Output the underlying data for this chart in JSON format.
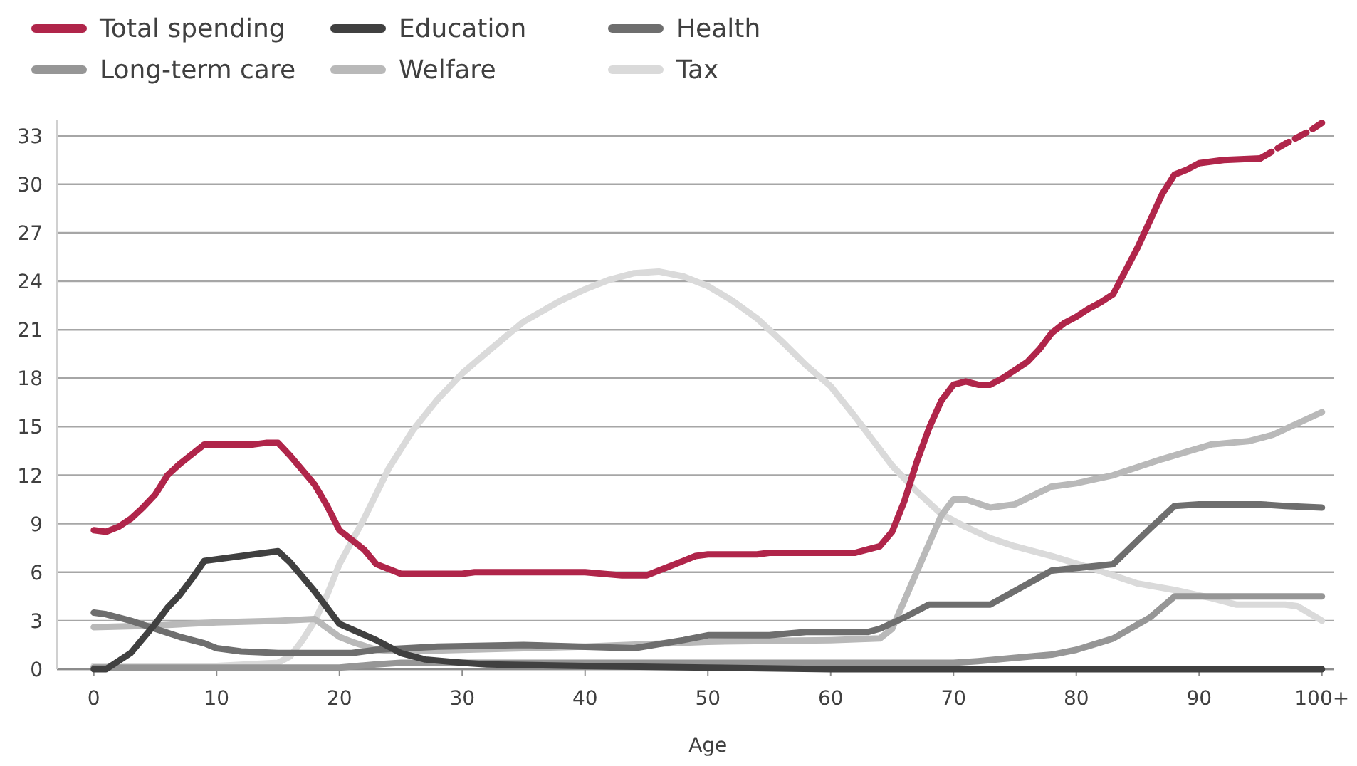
{
  "chart_data": {
    "type": "line",
    "xlabel": "Age",
    "xlim": [
      -3,
      101
    ],
    "ylim": [
      0,
      34
    ],
    "xticks": [
      0,
      10,
      20,
      30,
      40,
      50,
      60,
      70,
      80,
      90,
      {
        "value": 100,
        "label": "100+"
      }
    ],
    "yticks": [
      0,
      3,
      6,
      9,
      12,
      15,
      18,
      21,
      24,
      27,
      30,
      33
    ],
    "grid": "y",
    "legend": "top left",
    "line_style": "solid",
    "series": [
      {
        "name": "Tax",
        "color": "#dadada",
        "x": [
          0,
          5,
          10,
          15,
          16,
          17,
          18,
          19,
          20,
          22,
          24,
          26,
          28,
          30,
          32,
          35,
          38,
          40,
          42,
          44,
          46,
          48,
          50,
          52,
          54,
          56,
          58,
          60,
          62,
          64,
          65,
          67,
          69,
          71,
          73,
          75,
          78,
          81,
          83,
          85,
          88,
          91,
          93,
          97,
          98,
          100
        ],
        "values": [
          0.2,
          0.2,
          0.2,
          0.4,
          0.8,
          1.8,
          3.0,
          4.6,
          6.5,
          9.3,
          12.4,
          14.8,
          16.7,
          18.3,
          19.6,
          21.5,
          22.8,
          23.5,
          24.1,
          24.5,
          24.6,
          24.3,
          23.7,
          22.8,
          21.7,
          20.3,
          18.8,
          17.5,
          15.6,
          13.6,
          12.6,
          11.0,
          9.6,
          8.8,
          8.1,
          7.6,
          7.0,
          6.3,
          5.8,
          5.3,
          4.9,
          4.4,
          4.0,
          4.0,
          3.9,
          3.0
        ]
      },
      {
        "name": "Welfare",
        "color": "#b9b9b9",
        "x": [
          0,
          5,
          10,
          15,
          18,
          20,
          21,
          23,
          25,
          30,
          40,
          50,
          60,
          64,
          65,
          67,
          69,
          70,
          71,
          73,
          75,
          78,
          80,
          83,
          87,
          91,
          94,
          96,
          100
        ],
        "values": [
          2.6,
          2.7,
          2.9,
          3.0,
          3.1,
          2.0,
          1.7,
          1.2,
          1.1,
          1.2,
          1.4,
          1.7,
          1.8,
          1.9,
          2.5,
          6.0,
          9.5,
          10.5,
          10.5,
          10.0,
          10.2,
          11.3,
          11.5,
          12.0,
          13.0,
          13.9,
          14.1,
          14.5,
          15.9
        ]
      },
      {
        "name": "Long-term care",
        "color": "#969696",
        "x": [
          0,
          10,
          20,
          23,
          25,
          30,
          40,
          50,
          60,
          70,
          72,
          75,
          78,
          80,
          83,
          86,
          88,
          90,
          95,
          100
        ],
        "values": [
          0.1,
          0.1,
          0.1,
          0.3,
          0.4,
          0.4,
          0.4,
          0.4,
          0.4,
          0.4,
          0.5,
          0.7,
          0.9,
          1.2,
          1.9,
          3.2,
          4.5,
          4.5,
          4.5,
          4.5
        ]
      },
      {
        "name": "Health",
        "color": "#6e6e6e",
        "x": [
          0,
          1,
          3,
          5,
          7,
          9,
          10,
          12,
          15,
          19,
          21,
          23,
          28,
          35,
          44,
          48,
          50,
          55,
          58,
          63,
          64,
          66,
          68,
          73,
          78,
          83,
          86,
          88,
          90,
          95,
          97,
          100
        ],
        "values": [
          3.5,
          3.4,
          3.0,
          2.5,
          2.0,
          1.6,
          1.3,
          1.1,
          1.0,
          1.0,
          1.0,
          1.2,
          1.4,
          1.5,
          1.3,
          1.8,
          2.1,
          2.1,
          2.3,
          2.3,
          2.5,
          3.2,
          4.0,
          4.0,
          6.1,
          6.5,
          8.7,
          10.1,
          10.2,
          10.2,
          10.1,
          10.0
        ]
      },
      {
        "name": "Education",
        "color": "#404040",
        "x": [
          0,
          1,
          3,
          4,
          5,
          6,
          7,
          8,
          9,
          13,
          15,
          16,
          18,
          20,
          23,
          25,
          27,
          30,
          32,
          40,
          50,
          60,
          100
        ],
        "values": [
          0,
          0,
          1.0,
          1.9,
          2.8,
          3.8,
          4.6,
          5.6,
          6.7,
          7.1,
          7.3,
          6.6,
          4.8,
          2.8,
          1.8,
          1.0,
          0.6,
          0.4,
          0.3,
          0.2,
          0.1,
          0,
          0
        ]
      },
      {
        "name": "Total spending",
        "color": "#b0254a",
        "x": [
          0,
          1,
          2,
          3,
          4,
          5,
          6,
          7,
          8,
          9,
          13,
          14,
          15,
          16,
          17,
          18,
          19,
          20,
          22,
          23,
          25,
          30,
          31,
          40,
          43,
          45,
          46,
          48,
          49,
          50,
          54,
          55,
          62,
          63,
          64,
          65,
          66,
          67,
          68,
          69,
          70,
          71,
          72,
          73,
          74,
          76,
          77,
          78,
          79,
          80,
          81,
          82,
          83,
          85,
          87,
          88,
          89,
          90,
          92,
          95
        ],
        "values": [
          8.6,
          8.5,
          8.8,
          9.3,
          10.0,
          10.8,
          12.0,
          12.7,
          13.3,
          13.9,
          13.9,
          14.0,
          14.0,
          13.2,
          12.3,
          11.4,
          10.1,
          8.6,
          7.4,
          6.5,
          5.9,
          5.9,
          6.0,
          6.0,
          5.8,
          5.8,
          6.1,
          6.7,
          7.0,
          7.1,
          7.1,
          7.2,
          7.2,
          7.4,
          7.6,
          8.5,
          10.4,
          12.8,
          14.9,
          16.6,
          17.6,
          17.8,
          17.6,
          17.6,
          18.0,
          19.0,
          19.8,
          20.8,
          21.4,
          21.8,
          22.3,
          22.7,
          23.2,
          26.1,
          29.4,
          30.6,
          30.9,
          31.3,
          31.5,
          31.6
        ]
      },
      {
        "color": "#b0254a",
        "line_style": "dashed",
        "x": [
          95,
          97,
          99,
          100
        ],
        "values": [
          31.6,
          32.5,
          33.3,
          33.8
        ]
      }
    ]
  }
}
